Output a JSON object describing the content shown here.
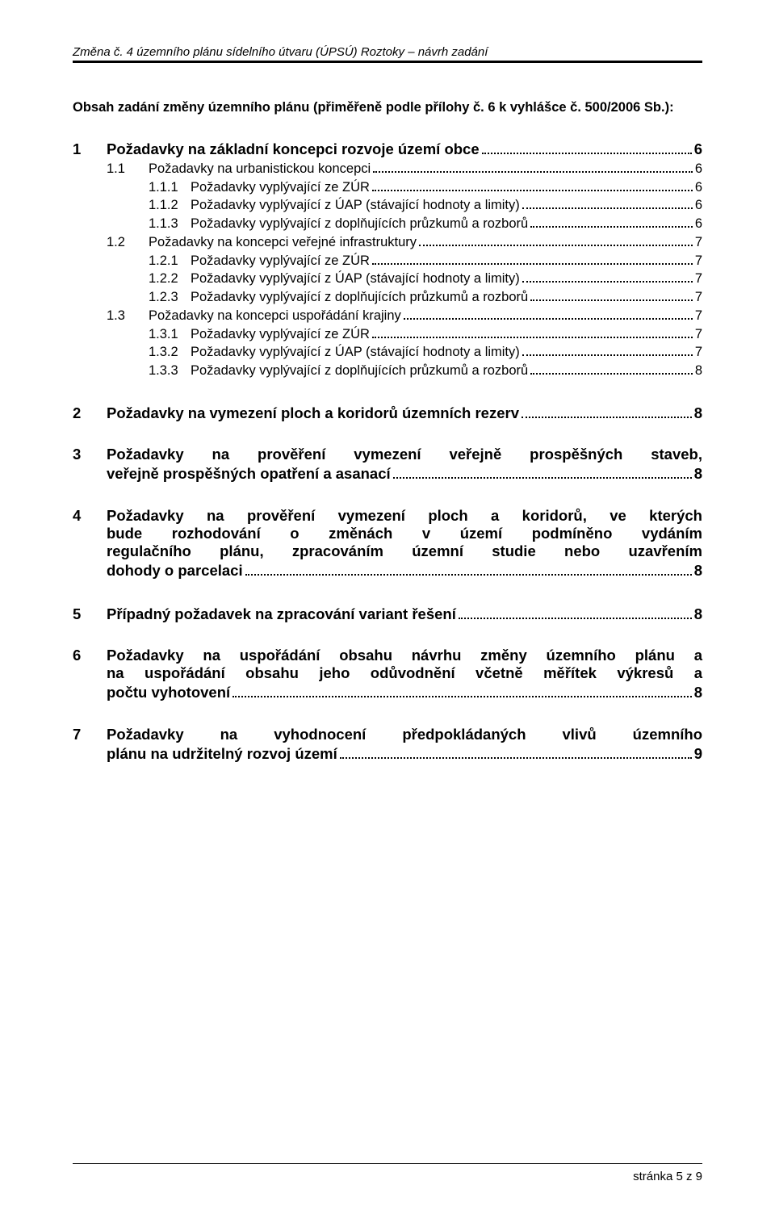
{
  "header": "Změna č. 4 územního plánu sídelního útvaru (ÚPSÚ) Roztoky – návrh zadání",
  "intro": "Obsah zadání změny územního plánu (přiměřeně podle přílohy č. 6 k vyhlášce č. 500/2006 Sb.):",
  "s1": {
    "num": "1",
    "title": "Požadavky na základní koncepci rozvoje území obce",
    "page": "6",
    "s11": {
      "num": "1.1",
      "title": "Požadavky na urbanistickou koncepci",
      "page": "6",
      "s111": {
        "num": "1.1.1",
        "title": "Požadavky vyplývající ze ZÚR",
        "page": "6"
      },
      "s112": {
        "num": "1.1.2",
        "title": "Požadavky vyplývající z ÚAP (stávající hodnoty a limity)",
        "page": "6"
      },
      "s113": {
        "num": "1.1.3",
        "title": "Požadavky vyplývající z doplňujících průzkumů a rozborů",
        "page": "6"
      }
    },
    "s12": {
      "num": "1.2",
      "title": "Požadavky na koncepci veřejné infrastruktury",
      "page": "7",
      "s121": {
        "num": "1.2.1",
        "title": "Požadavky vyplývající ze ZÚR",
        "page": "7"
      },
      "s122": {
        "num": "1.2.2",
        "title": "Požadavky vyplývající z ÚAP (stávající hodnoty a limity)",
        "page": "7"
      },
      "s123": {
        "num": "1.2.3",
        "title": "Požadavky vyplývající z doplňujících průzkumů a rozborů",
        "page": "7"
      }
    },
    "s13": {
      "num": "1.3",
      "title": "Požadavky na koncepci uspořádání krajiny",
      "page": "7",
      "s131": {
        "num": "1.3.1",
        "title": "Požadavky vyplývající ze ZÚR",
        "page": "7"
      },
      "s132": {
        "num": "1.3.2",
        "title": "Požadavky vyplývající z ÚAP (stávající hodnoty a limity)",
        "page": "7"
      },
      "s133": {
        "num": "1.3.3",
        "title": "Požadavky vyplývající z doplňujících průzkumů a rozborů",
        "page": "8"
      }
    }
  },
  "s2": {
    "num": "2",
    "title": "Požadavky na vymezení ploch a koridorů územních rezerv",
    "page": "8"
  },
  "s3": {
    "num": "3",
    "line1": "Požadavky na prověření vymezení veřejně prospěšných staveb,",
    "line2": "veřejně prospěšných opatření a asanací",
    "page": "8"
  },
  "s4": {
    "num": "4",
    "line1": "Požadavky na prověření vymezení ploch a koridorů, ve kterých",
    "line2": "bude rozhodování o změnách v území podmíněno vydáním",
    "line3": "regulačního plánu, zpracováním územní studie nebo uzavřením",
    "line4": "dohody o parcelaci",
    "page": "8"
  },
  "s5": {
    "num": "5",
    "title": "Případný požadavek na zpracování variant řešení",
    "page": "8"
  },
  "s6": {
    "num": "6",
    "line1": "Požadavky na uspořádání obsahu návrhu změny územního plánu a",
    "line2": "na uspořádání obsahu jeho odůvodnění včetně měřítek výkresů a",
    "line3": "počtu vyhotovení",
    "page": "8"
  },
  "s7": {
    "num": "7",
    "line1": "Požadavky na vyhodnocení předpokládaných vlivů územního",
    "line2": "plánu na udržitelný rozvoj území",
    "page": "9"
  },
  "footer": "stránka 5 z 9"
}
